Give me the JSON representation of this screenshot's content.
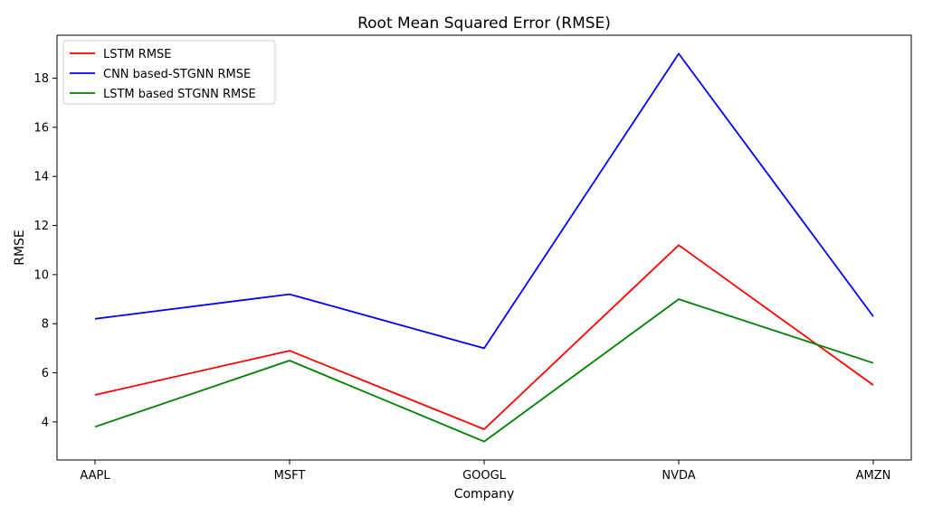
{
  "chart_data": {
    "type": "line",
    "title": "Root Mean Squared Error (RMSE)",
    "xlabel": "Company",
    "ylabel": "RMSE",
    "categories": [
      "AAPL",
      "MSFT",
      "GOOGL",
      "NVDA",
      "AMZN"
    ],
    "ylim": [
      2.45,
      19.75
    ],
    "yticks": [
      4,
      6,
      8,
      10,
      12,
      14,
      16,
      18
    ],
    "grid": false,
    "legend_position": "top-left",
    "series": [
      {
        "name": "LSTM RMSE",
        "color": "#ff0000",
        "values": [
          5.1,
          6.9,
          3.7,
          11.2,
          5.5
        ]
      },
      {
        "name": "CNN based-STGNN RMSE",
        "color": "#0000ff",
        "values": [
          8.2,
          9.2,
          7.0,
          19.0,
          8.3
        ]
      },
      {
        "name": "LSTM based STGNN RMSE",
        "color": "#008000",
        "values": [
          3.8,
          6.5,
          3.2,
          9.0,
          6.4
        ]
      }
    ]
  }
}
